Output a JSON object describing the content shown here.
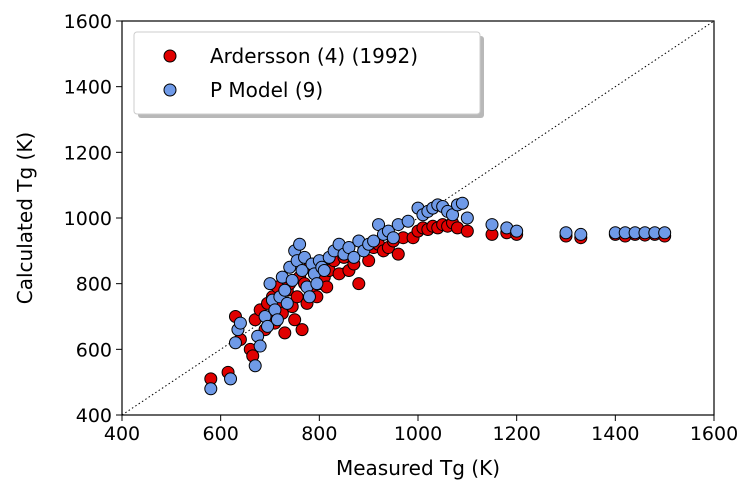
{
  "chart_data": {
    "type": "scatter",
    "title": "",
    "xlabel": "Measured Tg (K)",
    "ylabel": "Calculated Tg (K)",
    "xlim": [
      400,
      1600
    ],
    "ylim": [
      400,
      1600
    ],
    "xticks": [
      "400",
      "600",
      "800",
      "1000",
      "1200",
      "1400",
      "1600"
    ],
    "yticks": [
      "400",
      "600",
      "800",
      "1000",
      "1200",
      "1400",
      "1600"
    ],
    "grid": false,
    "legend_position": "top-left",
    "reference_line": "y = x (dotted)",
    "colors": {
      "ardersson": "#e00000",
      "pmodel": "#6f9ae8",
      "edge": "#000000"
    },
    "series": [
      {
        "name": "Ardersson (4) (1992)",
        "color": "#e00000",
        "points": [
          [
            580,
            510
          ],
          [
            615,
            530
          ],
          [
            630,
            700
          ],
          [
            640,
            630
          ],
          [
            660,
            600
          ],
          [
            665,
            580
          ],
          [
            670,
            690
          ],
          [
            680,
            720
          ],
          [
            690,
            660
          ],
          [
            695,
            740
          ],
          [
            700,
            700
          ],
          [
            705,
            760
          ],
          [
            710,
            680
          ],
          [
            715,
            790
          ],
          [
            720,
            740
          ],
          [
            725,
            710
          ],
          [
            730,
            650
          ],
          [
            735,
            780
          ],
          [
            740,
            800
          ],
          [
            745,
            730
          ],
          [
            750,
            690
          ],
          [
            755,
            760
          ],
          [
            760,
            820
          ],
          [
            765,
            660
          ],
          [
            770,
            800
          ],
          [
            775,
            740
          ],
          [
            780,
            850
          ],
          [
            785,
            780
          ],
          [
            790,
            830
          ],
          [
            795,
            760
          ],
          [
            800,
            800
          ],
          [
            805,
            860
          ],
          [
            810,
            820
          ],
          [
            815,
            790
          ],
          [
            820,
            840
          ],
          [
            830,
            870
          ],
          [
            840,
            830
          ],
          [
            850,
            880
          ],
          [
            860,
            840
          ],
          [
            870,
            860
          ],
          [
            880,
            800
          ],
          [
            890,
            900
          ],
          [
            900,
            870
          ],
          [
            910,
            910
          ],
          [
            920,
            920
          ],
          [
            930,
            900
          ],
          [
            940,
            910
          ],
          [
            950,
            930
          ],
          [
            960,
            890
          ],
          [
            970,
            940
          ],
          [
            990,
            940
          ],
          [
            1000,
            960
          ],
          [
            1010,
            970
          ],
          [
            1020,
            965
          ],
          [
            1030,
            975
          ],
          [
            1040,
            970
          ],
          [
            1050,
            980
          ],
          [
            1060,
            975
          ],
          [
            1070,
            985
          ],
          [
            1080,
            970
          ],
          [
            1100,
            960
          ],
          [
            1150,
            950
          ],
          [
            1180,
            955
          ],
          [
            1200,
            950
          ],
          [
            1300,
            945
          ],
          [
            1330,
            940
          ],
          [
            1400,
            950
          ],
          [
            1420,
            945
          ],
          [
            1440,
            950
          ],
          [
            1460,
            948
          ],
          [
            1480,
            950
          ],
          [
            1500,
            945
          ]
        ]
      },
      {
        "name": "P Model (9)",
        "color": "#6f9ae8",
        "points": [
          [
            580,
            480
          ],
          [
            620,
            510
          ],
          [
            630,
            620
          ],
          [
            635,
            660
          ],
          [
            640,
            680
          ],
          [
            670,
            550
          ],
          [
            675,
            640
          ],
          [
            680,
            610
          ],
          [
            690,
            700
          ],
          [
            695,
            670
          ],
          [
            700,
            800
          ],
          [
            705,
            750
          ],
          [
            710,
            720
          ],
          [
            715,
            690
          ],
          [
            720,
            760
          ],
          [
            725,
            820
          ],
          [
            730,
            780
          ],
          [
            735,
            740
          ],
          [
            740,
            850
          ],
          [
            745,
            810
          ],
          [
            750,
            900
          ],
          [
            755,
            870
          ],
          [
            760,
            920
          ],
          [
            765,
            840
          ],
          [
            770,
            880
          ],
          [
            775,
            790
          ],
          [
            780,
            760
          ],
          [
            785,
            860
          ],
          [
            790,
            830
          ],
          [
            795,
            800
          ],
          [
            800,
            870
          ],
          [
            805,
            850
          ],
          [
            810,
            840
          ],
          [
            820,
            880
          ],
          [
            830,
            900
          ],
          [
            840,
            920
          ],
          [
            850,
            890
          ],
          [
            860,
            910
          ],
          [
            870,
            880
          ],
          [
            880,
            930
          ],
          [
            890,
            900
          ],
          [
            900,
            920
          ],
          [
            910,
            930
          ],
          [
            920,
            980
          ],
          [
            930,
            950
          ],
          [
            940,
            960
          ],
          [
            950,
            940
          ],
          [
            960,
            980
          ],
          [
            980,
            990
          ],
          [
            1000,
            1030
          ],
          [
            1010,
            1010
          ],
          [
            1020,
            1020
          ],
          [
            1030,
            1030
          ],
          [
            1040,
            1040
          ],
          [
            1050,
            1035
          ],
          [
            1060,
            1020
          ],
          [
            1070,
            1010
          ],
          [
            1080,
            1040
          ],
          [
            1090,
            1045
          ],
          [
            1100,
            1000
          ],
          [
            1150,
            980
          ],
          [
            1180,
            970
          ],
          [
            1200,
            960
          ],
          [
            1300,
            955
          ],
          [
            1330,
            950
          ],
          [
            1400,
            955
          ],
          [
            1420,
            955
          ],
          [
            1440,
            955
          ],
          [
            1460,
            955
          ],
          [
            1480,
            955
          ],
          [
            1500,
            955
          ]
        ]
      }
    ]
  }
}
